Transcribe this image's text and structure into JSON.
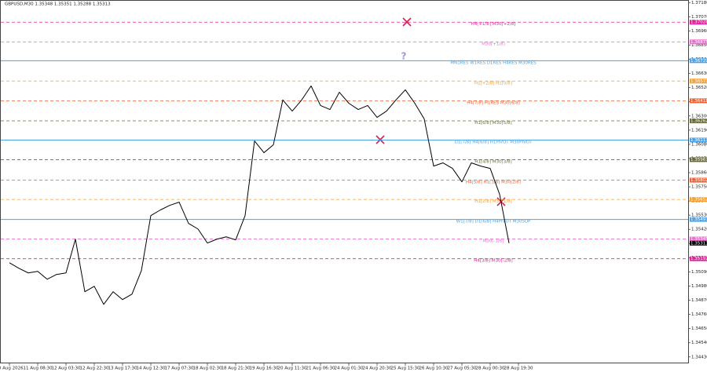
{
  "chart_data": {
    "type": "line",
    "title": "GBPUSD,M30 1.35348 1.35351 1.35288 1.35313",
    "color": "#000000",
    "categories": [
      "10 Aug 2026",
      null,
      null,
      "11 Aug 08:30",
      null,
      null,
      "12 Aug 03:30",
      null,
      null,
      "12 Aug 22:30",
      null,
      null,
      "13 Aug 17:30",
      null,
      null,
      "14 Aug 12:30",
      null,
      null,
      "17 Aug 07:30",
      null,
      null,
      "18 Aug 02:30",
      null,
      null,
      "18 Aug 21:30",
      null,
      null,
      "19 Aug 16:30",
      null,
      null,
      "20 Aug 11:30",
      null,
      null,
      "21 Aug 06:30",
      null,
      null,
      "24 Aug 01:30",
      null,
      null,
      "24 Aug 20:30",
      null,
      null,
      "25 Aug 15:30",
      null,
      null,
      "26 Aug 10:30",
      null,
      null,
      "27 Aug 05:30",
      null,
      null,
      "28 Aug 00:30",
      null,
      null,
      "28 Aug 19:30"
    ],
    "values": [
      1.35161,
      1.35118,
      1.35082,
      1.35094,
      1.35033,
      1.3507,
      1.35082,
      1.35344,
      1.34936,
      1.34978,
      1.34838,
      1.34936,
      1.34875,
      1.34917,
      1.351,
      1.35527,
      1.3557,
      1.35606,
      1.35631,
      1.35466,
      1.35423,
      1.35314,
      1.35344,
      1.35362,
      1.35338,
      1.35527,
      1.36106,
      1.36015,
      1.36076,
      1.36424,
      1.36338,
      1.36424,
      1.36533,
      1.36381,
      1.3635,
      1.36484,
      1.36399,
      1.3635,
      1.36381,
      1.36289,
      1.36338,
      1.36424,
      1.36503,
      1.36399,
      1.36277,
      1.35911,
      1.35936,
      1.35893,
      1.35789,
      1.35936,
      1.35911,
      1.35893,
      1.35692,
      1.35313,
      null
    ],
    "ylim": [
      1.3438,
      1.372
    ],
    "yticks": [
      {
        "value": 1.3443,
        "label": "1.34430"
      },
      {
        "value": 1.3454,
        "label": "1.34540"
      },
      {
        "value": 1.3465,
        "label": "1.34650"
      },
      {
        "value": 1.3476,
        "label": "1.34760"
      },
      {
        "value": 1.3487,
        "label": "1.34870"
      },
      {
        "value": 1.3498,
        "label": "1.34980"
      },
      {
        "value": 1.3509,
        "label": "1.35090"
      },
      {
        "value": 1.352,
        "label": "1.35200"
      },
      {
        "value": 1.3531,
        "label": "1.35310"
      },
      {
        "value": 1.3542,
        "label": "1.35420"
      },
      {
        "value": 1.3553,
        "label": "1.35530"
      },
      {
        "value": 1.3564,
        "label": "1.35640"
      },
      {
        "value": 1.3575,
        "label": "1.35750"
      },
      {
        "value": 1.3586,
        "label": "1.35860"
      },
      {
        "value": 1.3597,
        "label": "1.35970"
      },
      {
        "value": 1.3608,
        "label": "1.36080"
      },
      {
        "value": 1.3619,
        "label": "1.36190"
      },
      {
        "value": 1.363,
        "label": "1.36300"
      },
      {
        "value": 1.3641,
        "label": "1.36410"
      },
      {
        "value": 1.3652,
        "label": "1.36520"
      },
      {
        "value": 1.3663,
        "label": "1.36630"
      },
      {
        "value": 1.3674,
        "label": "1.36740"
      },
      {
        "value": 1.3685,
        "label": "1.36850"
      },
      {
        "value": 1.3696,
        "label": "1.36960"
      },
      {
        "value": 1.3707,
        "label": "1.37070"
      },
      {
        "value": 1.3718,
        "label": "1.37180"
      }
    ],
    "levels": [
      {
        "label": "H4[+1/8] M30[+2/8]",
        "value": 1.37028,
        "color": "#e0219a",
        "style": "dashed"
      },
      {
        "label": "M30[+1/8]",
        "value": 1.36875,
        "color": "#f06bd0",
        "style": "dashed"
      },
      {
        "label": "MN1RES W1RES D1RES H4RES M30RES",
        "value": 1.36729,
        "color": "#4aa3e8",
        "style": "solid"
      },
      {
        "label": "H1[+2/8] H1[0/8]",
        "value": 1.36571,
        "color": "#f5a030",
        "style": "dashed"
      },
      {
        "label": "H4[7/8] H1RES M30[6/8]",
        "value": 1.36418,
        "color": "#f06030",
        "style": "dashed"
      },
      {
        "label": "H1[6/8] M30[5/8]",
        "value": 1.36262,
        "color": "#6b6b3a",
        "style": "dashed"
      },
      {
        "label": "D1[7/8] H4[6/8] H1PIVOT M30PIVOT",
        "value": 1.36113,
        "color": "#4aa3e8",
        "style": "solid"
      },
      {
        "label": "H1[4/8] M30[3/8]",
        "value": 1.35961,
        "color": "#6b6b3a",
        "style": "dashed"
      },
      {
        "label": "H4[5/8] H1[3/8] M30[2/8]",
        "value": 1.35802,
        "color": "#f06030",
        "style": "dashed"
      },
      {
        "label": "H1[2/8] M30[1/8]",
        "value": 1.35652,
        "color": "#f5a030",
        "style": "dashed"
      },
      {
        "label": "W1[7/8] D1[6/8] H4PIVOT M30SUP",
        "value": 1.35497,
        "color": "#4aa3e8",
        "style": "solid"
      },
      {
        "label": "M30[-1/8]",
        "value": 1.35345,
        "color": "#f06bd0",
        "style": "dashed"
      },
      {
        "label": "H4[3/8] M30[-2/8]",
        "value": 1.35192,
        "color": "#e0219a",
        "style": "dashed"
      }
    ]
  }
}
